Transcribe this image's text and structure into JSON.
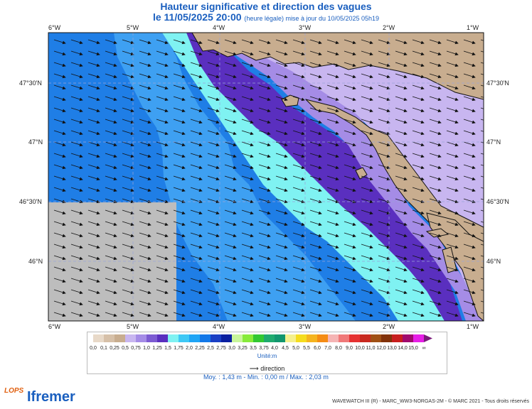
{
  "header": {
    "title": "Hauteur significative et direction des vagues",
    "date": "le 11/05/2025 20:00",
    "note": "(heure légale) mise à jour du 10/05/2025 05h19"
  },
  "axes": {
    "lon_labels": [
      "6°W",
      "5°W",
      "4°W",
      "3°W",
      "2°W",
      "1°W"
    ],
    "lat_labels": [
      "47°30'N",
      "47°N",
      "46°30'N",
      "46°N"
    ]
  },
  "legend": {
    "bins": [
      "0,0",
      "0,1",
      "0,25",
      "0,5",
      "0,75",
      "1,0",
      "1,25",
      "1,5",
      "1,75",
      "2,0",
      "2,25",
      "2,5",
      "2,75",
      "3,0",
      "3,25",
      "3,5",
      "3,75",
      "4,0",
      "4,5",
      "5,0",
      "5,5",
      "6,0",
      "7,0",
      "8,0",
      "9,0",
      "10,0",
      "11,0",
      "12,0",
      "13,0",
      "14,0",
      "15,0",
      "∞"
    ],
    "colors": [
      "#e8d9c8",
      "#d6c0a8",
      "#c8ad8f",
      "#c8b6f0",
      "#a58ce6",
      "#7c5bd2",
      "#5a2fbf",
      "#7ff2f2",
      "#3ec8f5",
      "#1fa5f5",
      "#1378e8",
      "#1a3fc4",
      "#0a1fa0",
      "#c8f59a",
      "#87eb3a",
      "#32c832",
      "#1faa6e",
      "#12966e",
      "#f5f08c",
      "#f5dc1e",
      "#f5b41e",
      "#f58c14",
      "#f5b4b4",
      "#f07878",
      "#e63232",
      "#c8281e",
      "#a05014",
      "#82320a",
      "#c81e1e",
      "#a00a6e",
      "#e61ee6",
      "#7a1a7a"
    ],
    "unit": "Unité:m",
    "direction_label": "direction"
  },
  "stats": {
    "text": "Moy. : 1,43 m   -   Min. : 0,00 m / Max. : 2,03 m"
  },
  "footer": {
    "copyright": "WAVEWATCH III (R) - MARC_WW3-NORGAS-2M - © MARC 2021 - Tous droits réservés",
    "lops": "LOPS",
    "ifremer": "Ifremer"
  },
  "map_data": {
    "region": "Golfe de Gascogne nord / Bretagne sud",
    "lon_range": [
      -6.0,
      -1.0
    ],
    "lat_range": [
      45.55,
      47.95
    ],
    "mean_height_m": 1.43,
    "min_height_m": 0.0,
    "max_height_m": 2.03,
    "wave_direction": "vers le sud-est"
  }
}
